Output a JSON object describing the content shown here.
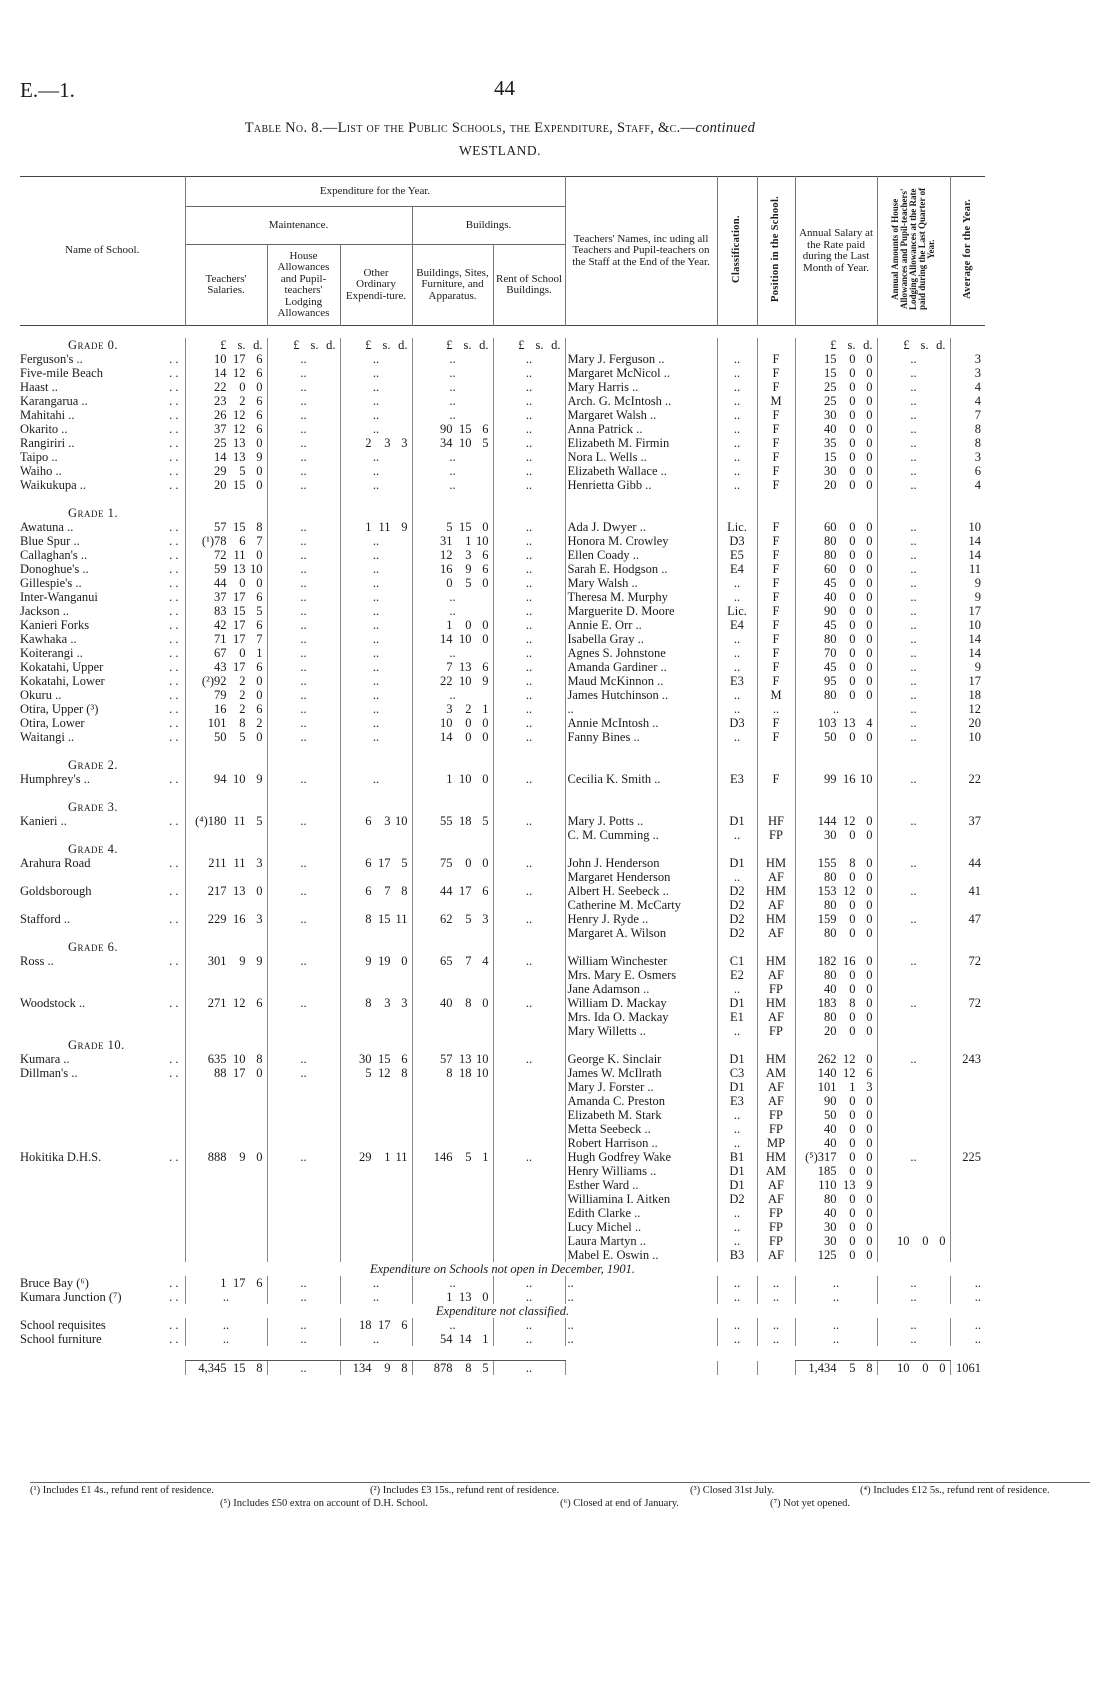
{
  "header": {
    "page_ref": "E.—1.",
    "page_number": "44",
    "title_prefix": "Table No. 8.—List of the Public Schools, the Expenditure, Staff, &c.—",
    "title_continued": "continued",
    "region": "WESTLAND."
  },
  "columns": {
    "name": "Name of School.",
    "expenditure": "Expenditure for the Year.",
    "maintenance": "Maintenance.",
    "buildings_group": "Buildings.",
    "teachers_salaries": "Teachers' Salaries.",
    "house_allowances": "House Allowances and Pupil-teachers' Lodging Allowances",
    "other_ordinary": "Other Ordinary Expendi-ture.",
    "buildings": "Buildings, Sites, Furniture, and Apparatus.",
    "rent": "Rent of School Buildings.",
    "teachers_names": "Teachers' Names, inc uding all Teachers and Pupil-teachers on the Staff at the End of the Year.",
    "classification": "Classification.",
    "position": "Position in the School.",
    "annual_salary": "Annual Salary at the Rate paid during the Last Month of Year.",
    "annual_amounts": "Annual Amounts of House Allowances and Pupil-teachers' Lodging Allowances at the Rate paid during the Last Quarter of Year.",
    "average": "Average for the Year."
  },
  "rows": [
    {
      "grade": "Grade 0.",
      "ts": "£ s. d.",
      "ha": "£ s. d.",
      "oo": "£ s. d.",
      "bs": "£ s. d.",
      "rent": "£ s. d.",
      "sal": "£ s. d.",
      "allow": "£ s. d."
    },
    {
      "school": "Ferguson's ..",
      "ts": "10 17 6",
      "ha": "..",
      "oo": "..",
      "bs": "..",
      "rent": "..",
      "teacher": "Mary J. Ferguson ..",
      "cls": "..",
      "pos": "F",
      "sal": "15 0 0",
      "allow": "..",
      "avg": "3"
    },
    {
      "school": "Five-mile Beach",
      "ts": "14 12 6",
      "ha": "..",
      "oo": "..",
      "bs": "..",
      "rent": "..",
      "teacher": "Margaret McNicol ..",
      "cls": "..",
      "pos": "F",
      "sal": "15 0 0",
      "allow": "..",
      "avg": "3"
    },
    {
      "school": "Haast ..",
      "ts": "22 0 0",
      "ha": "..",
      "oo": "..",
      "bs": "..",
      "rent": "..",
      "teacher": "Mary Harris ..",
      "cls": "..",
      "pos": "F",
      "sal": "25 0 0",
      "allow": "..",
      "avg": "4"
    },
    {
      "school": "Karangarua ..",
      "ts": "23 2 6",
      "ha": "..",
      "oo": "..",
      "bs": "..",
      "rent": "..",
      "teacher": "Arch. G. McIntosh ..",
      "cls": "..",
      "pos": "M",
      "sal": "25 0 0",
      "allow": "..",
      "avg": "4"
    },
    {
      "school": "Mahitahi ..",
      "ts": "26 12 6",
      "ha": "..",
      "oo": "..",
      "bs": "..",
      "rent": "..",
      "teacher": "Margaret Walsh ..",
      "cls": "..",
      "pos": "F",
      "sal": "30 0 0",
      "allow": "..",
      "avg": "7"
    },
    {
      "school": "Okarito ..",
      "ts": "37 12 6",
      "ha": "..",
      "oo": "..",
      "bs": "90 15 6",
      "rent": "..",
      "teacher": "Anna Patrick ..",
      "cls": "..",
      "pos": "F",
      "sal": "40 0 0",
      "allow": "..",
      "avg": "8"
    },
    {
      "school": "Rangiriri ..",
      "ts": "25 13 0",
      "ha": "..",
      "oo": "2 3 3",
      "bs": "34 10 5",
      "rent": "..",
      "teacher": "Elizabeth M. Firmin",
      "cls": "..",
      "pos": "F",
      "sal": "35 0 0",
      "allow": "..",
      "avg": "8"
    },
    {
      "school": "Taipo ..",
      "ts": "14 13 9",
      "ha": "..",
      "oo": "..",
      "bs": "..",
      "rent": "..",
      "teacher": "Nora L. Wells ..",
      "cls": "..",
      "pos": "F",
      "sal": "15 0 0",
      "allow": "..",
      "avg": "3"
    },
    {
      "school": "Waiho ..",
      "ts": "29 5 0",
      "ha": "..",
      "oo": "..",
      "bs": "..",
      "rent": "..",
      "teacher": "Elizabeth Wallace ..",
      "cls": "..",
      "pos": "F",
      "sal": "30 0 0",
      "allow": "..",
      "avg": "6"
    },
    {
      "school": "Waikukupa ..",
      "ts": "20 15 0",
      "ha": "..",
      "oo": "..",
      "bs": "..",
      "rent": "..",
      "teacher": "Henrietta Gibb ..",
      "cls": "..",
      "pos": "F",
      "sal": "20 0 0",
      "allow": "..",
      "avg": "4"
    },
    {},
    {
      "grade": "Grade 1."
    },
    {
      "school": "Awatuna ..",
      "ts": "57 15 8",
      "ha": "..",
      "oo": "1 11 9",
      "bs": "5 15 0",
      "rent": "..",
      "teacher": "Ada J. Dwyer ..",
      "cls": "Lic.",
      "pos": "F",
      "sal": "60 0 0",
      "allow": "..",
      "avg": "10"
    },
    {
      "school": "Blue Spur ..",
      "ts": "(¹)78 6 7",
      "ha": "..",
      "oo": "..",
      "bs": "31 1 10",
      "rent": "..",
      "teacher": "Honora M. Crowley",
      "cls": "D3",
      "pos": "F",
      "sal": "80 0 0",
      "allow": "..",
      "avg": "14"
    },
    {
      "school": "Callaghan's ..",
      "ts": "72 11 0",
      "ha": "..",
      "oo": "..",
      "bs": "12 3 6",
      "rent": "..",
      "teacher": "Ellen Coady ..",
      "cls": "E5",
      "pos": "F",
      "sal": "80 0 0",
      "allow": "..",
      "avg": "14"
    },
    {
      "school": "Donoghue's ..",
      "ts": "59 13 10",
      "ha": "..",
      "oo": "..",
      "bs": "16 9 6",
      "rent": "..",
      "teacher": "Sarah E. Hodgson ..",
      "cls": "E4",
      "pos": "F",
      "sal": "60 0 0",
      "allow": "..",
      "avg": "11"
    },
    {
      "school": "Gillespie's ..",
      "ts": "44 0 0",
      "ha": "..",
      "oo": "..",
      "bs": "0 5 0",
      "rent": "..",
      "teacher": "Mary Walsh ..",
      "cls": "..",
      "pos": "F",
      "sal": "45 0 0",
      "allow": "..",
      "avg": "9"
    },
    {
      "school": "Inter-Wanganui",
      "ts": "37 17 6",
      "ha": "..",
      "oo": "..",
      "bs": "..",
      "rent": "..",
      "teacher": "Theresa M. Murphy",
      "cls": "..",
      "pos": "F",
      "sal": "40 0 0",
      "allow": "..",
      "avg": "9"
    },
    {
      "school": "Jackson ..",
      "ts": "83 15 5",
      "ha": "..",
      "oo": "..",
      "bs": "..",
      "rent": "..",
      "teacher": "Marguerite D. Moore",
      "cls": "Lic.",
      "pos": "F",
      "sal": "90 0 0",
      "allow": "..",
      "avg": "17"
    },
    {
      "school": "Kanieri Forks",
      "ts": "42 17 6",
      "ha": "..",
      "oo": "..",
      "bs": "1 0 0",
      "rent": "..",
      "teacher": "Annie E. Orr ..",
      "cls": "E4",
      "pos": "F",
      "sal": "45 0 0",
      "allow": "..",
      "avg": "10"
    },
    {
      "school": "Kawhaka ..",
      "ts": "71 17 7",
      "ha": "..",
      "oo": "..",
      "bs": "14 10 0",
      "rent": "..",
      "teacher": "Isabella Gray ..",
      "cls": "..",
      "pos": "F",
      "sal": "80 0 0",
      "allow": "..",
      "avg": "14"
    },
    {
      "school": "Koiterangi ..",
      "ts": "67 0 1",
      "ha": "..",
      "oo": "..",
      "bs": "..",
      "rent": "..",
      "teacher": "Agnes S. Johnstone",
      "cls": "..",
      "pos": "F",
      "sal": "70 0 0",
      "allow": "..",
      "avg": "14"
    },
    {
      "school": "Kokatahi, Upper",
      "ts": "43 17 6",
      "ha": "..",
      "oo": "..",
      "bs": "7 13 6",
      "rent": "..",
      "teacher": "Amanda Gardiner ..",
      "cls": "..",
      "pos": "F",
      "sal": "45 0 0",
      "allow": "..",
      "avg": "9"
    },
    {
      "school": "Kokatahi, Lower",
      "ts": "(²)92 2 0",
      "ha": "..",
      "oo": "..",
      "bs": "22 10 9",
      "rent": "..",
      "teacher": "Maud McKinnon ..",
      "cls": "E3",
      "pos": "F",
      "sal": "95 0 0",
      "allow": "..",
      "avg": "17"
    },
    {
      "school": "Okuru ..",
      "ts": "79 2 0",
      "ha": "..",
      "oo": "..",
      "bs": "..",
      "rent": "..",
      "teacher": "James Hutchinson ..",
      "cls": "..",
      "pos": "M",
      "sal": "80 0 0",
      "allow": "..",
      "avg": "18"
    },
    {
      "school": "Otira, Upper (³)",
      "ts": "16 2 6",
      "ha": "..",
      "oo": "..",
      "bs": "3 2 1",
      "rent": "..",
      "teacher": "..",
      "cls": "..",
      "pos": "..",
      "sal": "..",
      "allow": "..",
      "avg": "12"
    },
    {
      "school": "Otira, Lower",
      "ts": "101 8 2",
      "ha": "..",
      "oo": "..",
      "bs": "10 0 0",
      "rent": "..",
      "teacher": "Annie McIntosh ..",
      "cls": "D3",
      "pos": "F",
      "sal": "103 13 4",
      "allow": "..",
      "avg": "20"
    },
    {
      "school": "Waitangi ..",
      "ts": "50 5 0",
      "ha": "..",
      "oo": "..",
      "bs": "14 0 0",
      "rent": "..",
      "teacher": "Fanny Bines ..",
      "cls": "..",
      "pos": "F",
      "sal": "50 0 0",
      "allow": "..",
      "avg": "10"
    },
    {},
    {
      "grade": "Grade 2."
    },
    {
      "school": "Humphrey's ..",
      "ts": "94 10 9",
      "ha": "..",
      "oo": "..",
      "bs": "1 10 0",
      "rent": "..",
      "teacher": "Cecilia K. Smith ..",
      "cls": "E3",
      "pos": "F",
      "sal": "99 16 10",
      "allow": "..",
      "avg": "22"
    },
    {},
    {
      "grade": "Grade 3."
    },
    {
      "school": "Kanieri ..",
      "ts": "(⁴)180 11 5",
      "ha": "..",
      "oo": "6 3 10",
      "bs": "55 18 5",
      "rent": "..",
      "teacher": "Mary J. Potts ..",
      "cls": "D1",
      "pos": "HF",
      "sal": "144 12 0",
      "allow": "..",
      "avg": "37"
    },
    {
      "teacher": "C. M. Cumming ..",
      "cls": "..",
      "pos": "FP",
      "sal": "30 0 0"
    },
    {
      "grade": "Grade 4."
    },
    {
      "school": "Arahura Road",
      "ts": "211 11 3",
      "ha": "..",
      "oo": "6 17 5",
      "bs": "75 0 0",
      "rent": "..",
      "teacher": "John J. Henderson",
      "cls": "D1",
      "pos": "HM",
      "sal": "155 8 0",
      "allow": "..",
      "avg": "44"
    },
    {
      "teacher": "Margaret Henderson",
      "cls": "..",
      "pos": "AF",
      "sal": "80 0 0"
    },
    {
      "school": "Goldsborough",
      "ts": "217 13 0",
      "ha": "..",
      "oo": "6 7 8",
      "bs": "44 17 6",
      "rent": "..",
      "teacher": "Albert H. Seebeck ..",
      "cls": "D2",
      "pos": "HM",
      "sal": "153 12 0",
      "allow": "..",
      "avg": "41"
    },
    {
      "teacher": "Catherine M. McCarty",
      "cls": "D2",
      "pos": "AF",
      "sal": "80 0 0"
    },
    {
      "school": "Stafford ..",
      "ts": "229 16 3",
      "ha": "..",
      "oo": "8 15 11",
      "bs": "62 5 3",
      "rent": "..",
      "teacher": "Henry J. Ryde ..",
      "cls": "D2",
      "pos": "HM",
      "sal": "159 0 0",
      "allow": "..",
      "avg": "47"
    },
    {
      "teacher": "Margaret A. Wilson",
      "cls": "D2",
      "pos": "AF",
      "sal": "80 0 0"
    },
    {
      "grade": "Grade 6."
    },
    {
      "school": "Ross ..",
      "ts": "301 9 9",
      "ha": "..",
      "oo": "9 19 0",
      "bs": "65 7 4",
      "rent": "..",
      "teacher": "William Winchester",
      "cls": "C1",
      "pos": "HM",
      "sal": "182 16 0",
      "allow": "..",
      "avg": "72"
    },
    {
      "teacher": "Mrs. Mary E. Osmers",
      "cls": "E2",
      "pos": "AF",
      "sal": "80 0 0"
    },
    {
      "teacher": "Jane Adamson ..",
      "cls": "..",
      "pos": "FP",
      "sal": "40 0 0"
    },
    {
      "school": "Woodstock ..",
      "ts": "271 12 6",
      "ha": "..",
      "oo": "8 3 3",
      "bs": "40 8 0",
      "rent": "..",
      "teacher": "William D. Mackay",
      "cls": "D1",
      "pos": "HM",
      "sal": "183 8 0",
      "allow": "..",
      "avg": "72"
    },
    {
      "teacher": "Mrs. Ida O. Mackay",
      "cls": "E1",
      "pos": "AF",
      "sal": "80 0 0"
    },
    {
      "teacher": "Mary Willetts ..",
      "cls": "..",
      "pos": "FP",
      "sal": "20 0 0"
    },
    {
      "grade": "Grade 10."
    },
    {
      "school": "Kumara ..",
      "ts": "635 10 8",
      "ha": "..",
      "oo": "30 15 6",
      "bs": "57 13 10",
      "rent": "..",
      "teacher": "George K. Sinclair",
      "cls": "D1",
      "pos": "HM",
      "sal": "262 12 0",
      "allow": "..",
      "avg": "243"
    },
    {
      "school": "Dillman's ..",
      "ts": "88 17 0",
      "ha": "..",
      "oo": "5 12 8",
      "bs": "8 18 10",
      "teacher": "James W. McIlrath",
      "cls": "C3",
      "pos": "AM",
      "sal": "140 12 6"
    },
    {
      "teacher": "Mary J. Forster ..",
      "cls": "D1",
      "pos": "AF",
      "sal": "101 1 3"
    },
    {
      "teacher": "Amanda C. Preston",
      "cls": "E3",
      "pos": "AF",
      "sal": "90 0 0"
    },
    {
      "teacher": "Elizabeth M. Stark",
      "cls": "..",
      "pos": "FP",
      "sal": "50 0 0"
    },
    {
      "teacher": "Metta Seebeck ..",
      "cls": "..",
      "pos": "FP",
      "sal": "40 0 0"
    },
    {
      "teacher": "Robert Harrison ..",
      "cls": "..",
      "pos": "MP",
      "sal": "40 0 0"
    },
    {
      "school": "Hokitika D.H.S.",
      "ts": "888 9 0",
      "ha": "..",
      "oo": "29 1 11",
      "bs": "146 5 1",
      "rent": "..",
      "teacher": "Hugh Godfrey Wake",
      "cls": "B1",
      "pos": "HM",
      "sal": "(⁵)317 0 0",
      "allow": "..",
      "avg": "225"
    },
    {
      "teacher": "Henry Williams ..",
      "cls": "D1",
      "pos": "AM",
      "sal": "185 0 0"
    },
    {
      "teacher": "Esther Ward ..",
      "cls": "D1",
      "pos": "AF",
      "sal": "110 13 9"
    },
    {
      "teacher": "Williamina I. Aitken",
      "cls": "D2",
      "pos": "AF",
      "sal": "80 0 0"
    },
    {
      "teacher": "Edith Clarke ..",
      "cls": "..",
      "pos": "FP",
      "sal": "40 0 0"
    },
    {
      "teacher": "Lucy Michel ..",
      "cls": "..",
      "pos": "FP",
      "sal": "30 0 0"
    },
    {
      "teacher": "Laura Martyn ..",
      "cls": "..",
      "pos": "FP",
      "sal": "30 0 0",
      "allow": "10 0 0"
    },
    {
      "teacher": "Mabel E. Oswin ..",
      "cls": "B3",
      "pos": "AF",
      "sal": "125 0 0"
    }
  ],
  "sections": [
    {
      "title": "Expenditure on Schools not open in December, 1901.",
      "rows": [
        {
          "school": "Bruce Bay (⁶)",
          "ts": "1 17 6",
          "ha": "..",
          "oo": "..",
          "bs": "..",
          "rent": "..",
          "teacher": "..",
          "cls": "..",
          "pos": "..",
          "sal": "..",
          "allow": "..",
          "avg": ".."
        },
        {
          "school": "Kumara Junction (⁷)",
          "ts": "..",
          "ha": "..",
          "oo": "..",
          "bs": "1 13 0",
          "rent": "..",
          "teacher": "..",
          "cls": "..",
          "pos": "..",
          "sal": "..",
          "allow": "..",
          "avg": ".."
        }
      ]
    },
    {
      "title": "Expenditure not classified.",
      "rows": [
        {
          "school": "School requisites",
          "ts": "..",
          "ha": "..",
          "oo": "18 17 6",
          "bs": "..",
          "rent": "..",
          "teacher": "..",
          "cls": "..",
          "pos": "..",
          "sal": "..",
          "allow": "..",
          "avg": ".."
        },
        {
          "school": "School furniture",
          "ts": "..",
          "ha": "..",
          "oo": "..",
          "bs": "54 14 1",
          "rent": "..",
          "teacher": "..",
          "cls": "..",
          "pos": "..",
          "sal": "..",
          "allow": "..",
          "avg": ".."
        }
      ]
    }
  ],
  "totals": {
    "ts": "4,345 15 8",
    "ha": "..",
    "oo": "134 9 8",
    "bs": "878 8 5",
    "rent": "..",
    "sal": "1,434 5 8",
    "allow": "10 0 0",
    "avg": "1061"
  },
  "footnotes": [
    "(¹) Includes £1 4s., refund rent of residence.",
    "(²) Includes £3 15s., refund rent of residence.",
    "(³) Closed 31st July.",
    "(⁴) Includes £12 5s., refund rent of residence.",
    "(⁵) Includes £50 extra on account of D.H. School.",
    "(⁶) Closed at end of January.",
    "(⁷) Not yet opened."
  ]
}
